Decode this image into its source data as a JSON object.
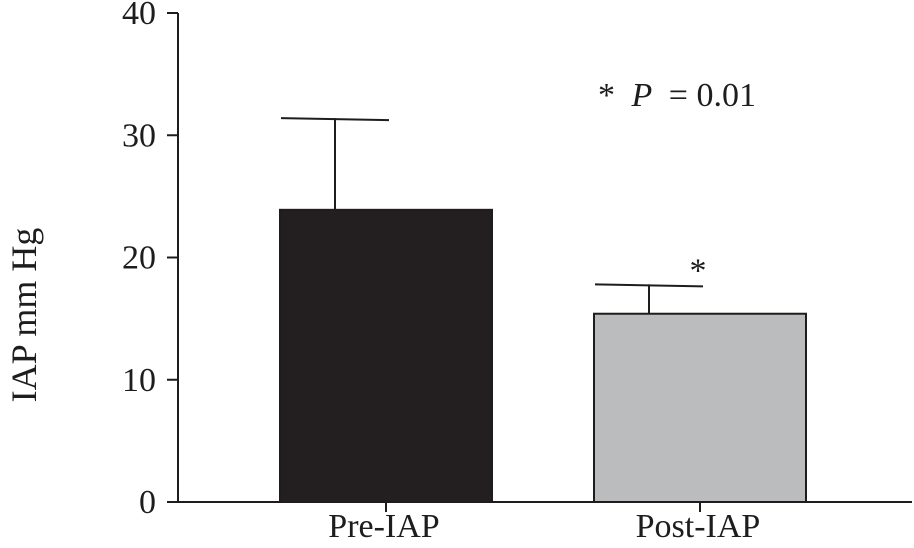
{
  "chart_data": {
    "type": "bar",
    "categories": [
      "Pre-IAP",
      "Post-IAP"
    ],
    "values": [
      23.9,
      15.4
    ],
    "error_upper": [
      31.4,
      17.8
    ],
    "ylabel": "IAP mm Hg",
    "xlabel": "",
    "ylim": [
      0,
      40
    ],
    "yticks": [
      0,
      10,
      20,
      30,
      40
    ],
    "grid": false,
    "bar_colors": [
      "#231f20",
      "#bbbcbe"
    ],
    "significance_marker": "*",
    "significant_bars": [
      false,
      true
    ],
    "annotation": {
      "star": "*",
      "p_symbol": "P",
      "p_text": "= 0.01"
    }
  }
}
